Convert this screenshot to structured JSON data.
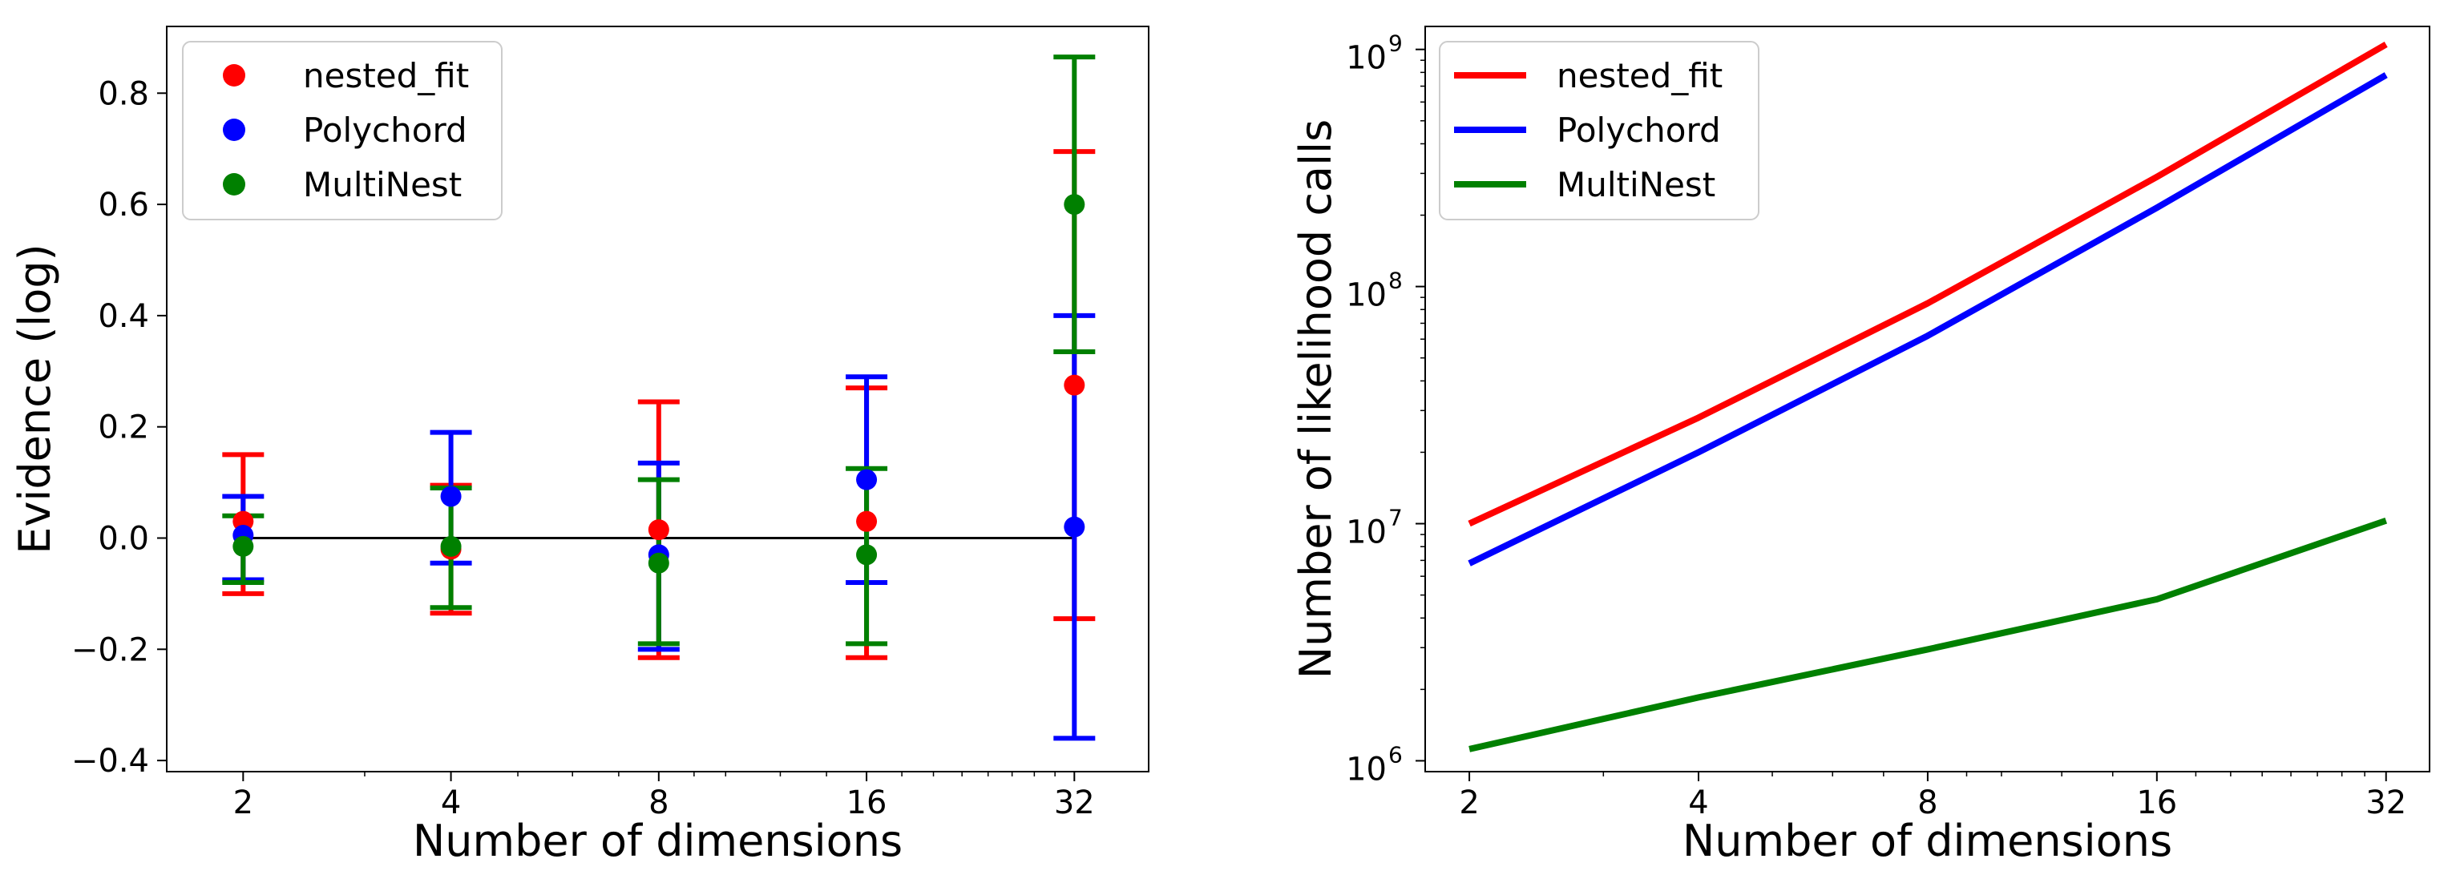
{
  "chart_data": [
    {
      "type": "errorbar",
      "xscale": "log2",
      "xlabel": "Number of dimensions",
      "ylabel": "Evidence (log)",
      "x_ticks": [
        "2",
        "4",
        "8",
        "16",
        "32"
      ],
      "x": [
        2,
        4,
        8,
        16,
        32
      ],
      "ylim": [
        -0.42,
        0.92
      ],
      "xlim": [
        1.55,
        41
      ],
      "y_ticks": [
        {
          "value": -0.4,
          "label": "−0.4"
        },
        {
          "value": -0.2,
          "label": "−0.2"
        },
        {
          "value": 0.0,
          "label": "0.0"
        },
        {
          "value": 0.2,
          "label": "0.2"
        },
        {
          "value": 0.4,
          "label": "0.4"
        },
        {
          "value": 0.6,
          "label": "0.6"
        },
        {
          "value": 0.8,
          "label": "0.8"
        }
      ],
      "reference_line": {
        "y": 0.0,
        "x_from": 2,
        "x_to": 32,
        "color": "#000000"
      },
      "legend_position": "upper-left",
      "series": [
        {
          "name": "nested_fit",
          "color": "#ff0000",
          "values": [
            0.03,
            -0.02,
            0.015,
            0.03,
            0.275
          ],
          "err_low": [
            -0.1,
            -0.135,
            -0.215,
            -0.215,
            -0.145
          ],
          "err_high": [
            0.15,
            0.095,
            0.245,
            0.27,
            0.695
          ]
        },
        {
          "name": "Polychord",
          "color": "#0000ff",
          "values": [
            0.005,
            0.075,
            -0.03,
            0.105,
            0.02
          ],
          "err_low": [
            -0.075,
            -0.045,
            -0.2,
            -0.08,
            -0.36
          ],
          "err_high": [
            0.075,
            0.19,
            0.135,
            0.29,
            0.4
          ]
        },
        {
          "name": "MultiNest",
          "color": "#008000",
          "values": [
            -0.015,
            -0.015,
            -0.045,
            -0.03,
            0.6
          ],
          "err_low": [
            -0.08,
            -0.125,
            -0.19,
            -0.19,
            0.335
          ],
          "err_high": [
            0.04,
            0.09,
            0.105,
            0.125,
            0.865
          ]
        }
      ]
    },
    {
      "type": "line",
      "xscale": "log2",
      "yscale": "log10",
      "xlabel": "Number of dimensions",
      "ylabel": "Number of likelihood calls",
      "x_ticks": [
        "2",
        "4",
        "8",
        "16",
        "32"
      ],
      "x": [
        2,
        4,
        8,
        16,
        32
      ],
      "ylim": [
        900000.0,
        1250000000.0
      ],
      "xlim": [
        1.75,
        36.5
      ],
      "y_ticks": [
        {
          "value": 1000000.0,
          "base": "10",
          "exp": "6"
        },
        {
          "value": 10000000.0,
          "base": "10",
          "exp": "7"
        },
        {
          "value": 100000000.0,
          "base": "10",
          "exp": "8"
        },
        {
          "value": 1000000000.0,
          "base": "10",
          "exp": "9"
        }
      ],
      "legend_position": "upper-left",
      "series": [
        {
          "name": "nested_fit",
          "color": "#ff0000",
          "values": [
            10000000.0,
            28000000.0,
            85000000.0,
            290000000.0,
            1050000000.0
          ]
        },
        {
          "name": "Polychord",
          "color": "#0000ff",
          "values": [
            6800000.0,
            20000000.0,
            62000000.0,
            215000000.0,
            780000000.0
          ]
        },
        {
          "name": "MultiNest",
          "color": "#008000",
          "values": [
            1120000.0,
            1850000.0,
            2950000.0,
            4800000.0,
            10300000.0
          ]
        }
      ]
    }
  ]
}
